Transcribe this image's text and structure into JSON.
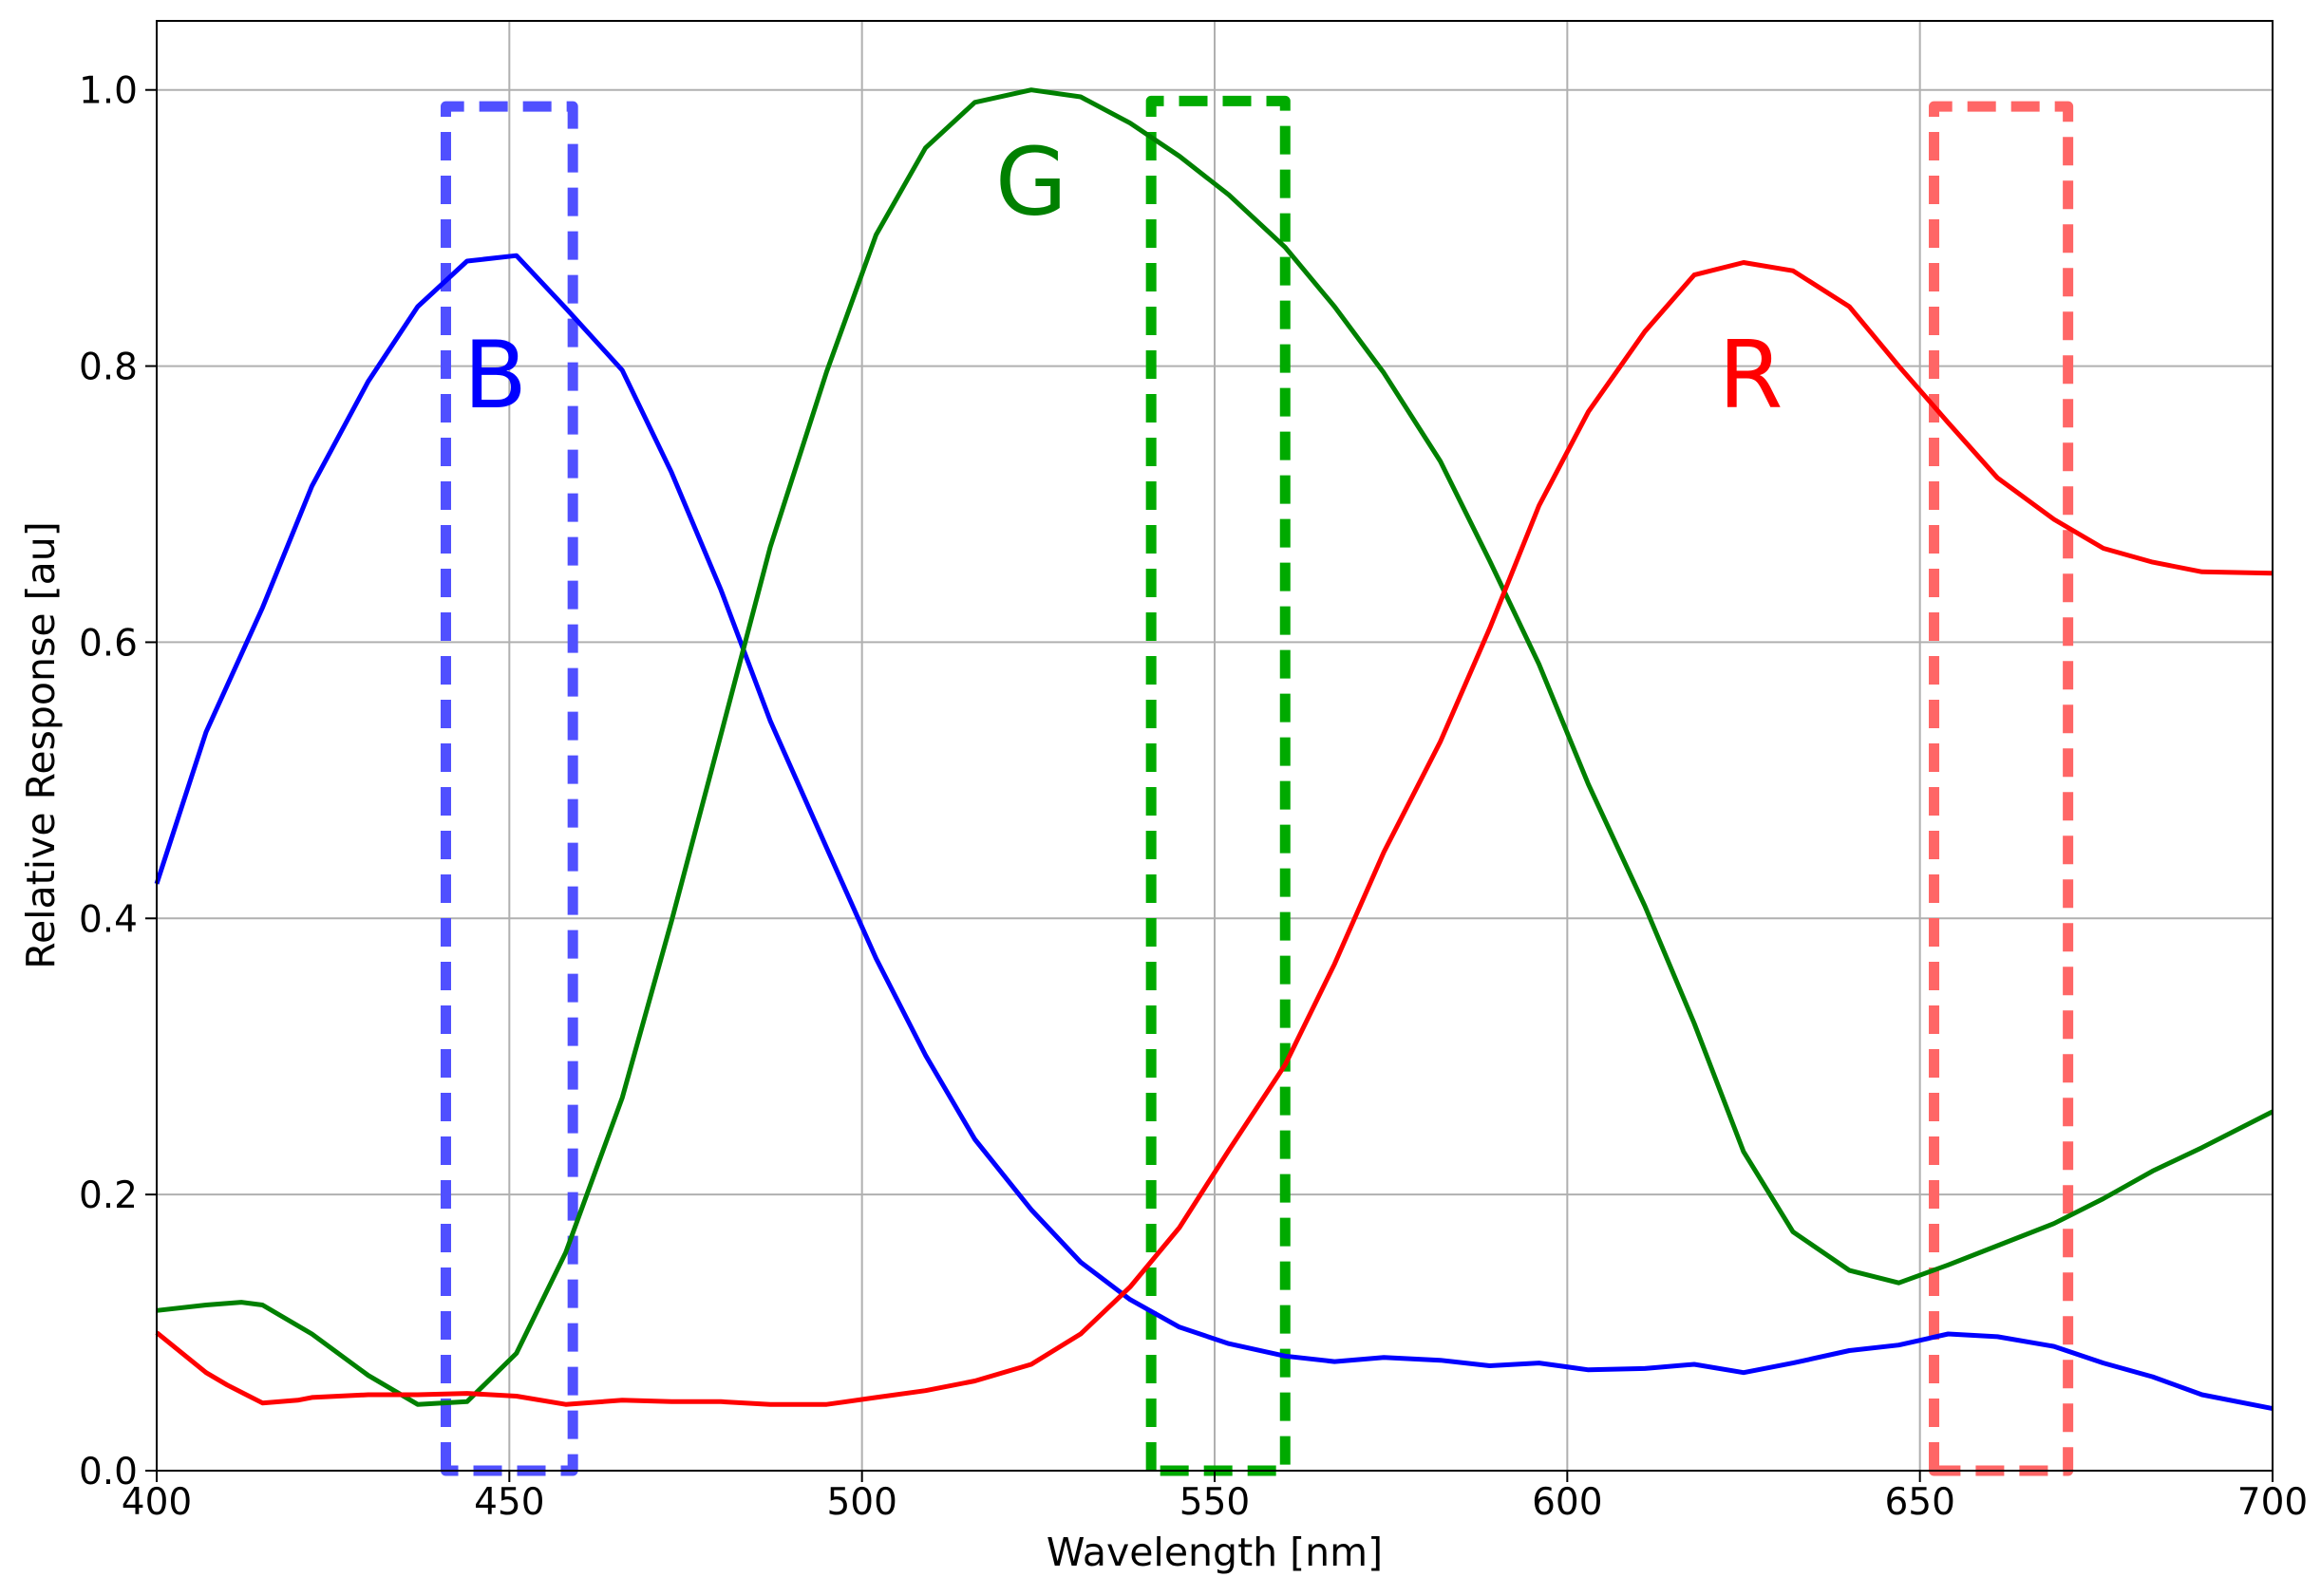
{
  "chart_data": {
    "type": "line",
    "title": "",
    "xlabel": "Wavelength [nm]",
    "ylabel": "Relative Response [au]",
    "xlim": [
      400,
      700
    ],
    "ylim": [
      0,
      1.05
    ],
    "grid": true,
    "x_ticks": [
      400,
      450,
      500,
      550,
      600,
      650,
      700
    ],
    "y_ticks": [
      0.0,
      0.2,
      0.4,
      0.6,
      0.8,
      1.0
    ],
    "x_tick_labels": [
      "400",
      "450",
      "500",
      "550",
      "600",
      "650",
      "700"
    ],
    "y_tick_labels": [
      "0.0",
      "0.2",
      "0.4",
      "0.6",
      "0.8",
      "1.0"
    ],
    "series": [
      {
        "name": "B",
        "color": "#0000ff",
        "points": [
          [
            400,
            0.425
          ],
          [
            407,
            0.535
          ],
          [
            415,
            0.625
          ],
          [
            422,
            0.713
          ],
          [
            430,
            0.789
          ],
          [
            437,
            0.843
          ],
          [
            444,
            0.876
          ],
          [
            451,
            0.88
          ],
          [
            458,
            0.842
          ],
          [
            466,
            0.797
          ],
          [
            473,
            0.723
          ],
          [
            480,
            0.638
          ],
          [
            487,
            0.543
          ],
          [
            495,
            0.451
          ],
          [
            502,
            0.371
          ],
          [
            509,
            0.301
          ],
          [
            516,
            0.24
          ],
          [
            524,
            0.189
          ],
          [
            531,
            0.151
          ],
          [
            538,
            0.124
          ],
          [
            545,
            0.104
          ],
          [
            552,
            0.092
          ],
          [
            560,
            0.083
          ],
          [
            567,
            0.079
          ],
          [
            574,
            0.082
          ],
          [
            582,
            0.08
          ],
          [
            589,
            0.076
          ],
          [
            596,
            0.078
          ],
          [
            603,
            0.073
          ],
          [
            611,
            0.074
          ],
          [
            618,
            0.077
          ],
          [
            625,
            0.071
          ],
          [
            632,
            0.078
          ],
          [
            640,
            0.087
          ],
          [
            647,
            0.091
          ],
          [
            654,
            0.099
          ],
          [
            661,
            0.097
          ],
          [
            669,
            0.09
          ],
          [
            676,
            0.078
          ],
          [
            683,
            0.068
          ],
          [
            690,
            0.055
          ],
          [
            700,
            0.045
          ]
        ]
      },
      {
        "name": "G",
        "color": "#008000",
        "points": [
          [
            400,
            0.116
          ],
          [
            407,
            0.12
          ],
          [
            412,
            0.122
          ],
          [
            415,
            0.12
          ],
          [
            422,
            0.099
          ],
          [
            430,
            0.069
          ],
          [
            437,
            0.048
          ],
          [
            444,
            0.05
          ],
          [
            451,
            0.085
          ],
          [
            458,
            0.158
          ],
          [
            466,
            0.27
          ],
          [
            473,
            0.398
          ],
          [
            480,
            0.533
          ],
          [
            487,
            0.669
          ],
          [
            495,
            0.796
          ],
          [
            502,
            0.895
          ],
          [
            509,
            0.958
          ],
          [
            516,
            0.991
          ],
          [
            524,
            1.0
          ],
          [
            531,
            0.995
          ],
          [
            538,
            0.976
          ],
          [
            545,
            0.952
          ],
          [
            552,
            0.924
          ],
          [
            560,
            0.886
          ],
          [
            567,
            0.843
          ],
          [
            574,
            0.795
          ],
          [
            582,
            0.731
          ],
          [
            589,
            0.659
          ],
          [
            596,
            0.584
          ],
          [
            603,
            0.497
          ],
          [
            611,
            0.409
          ],
          [
            618,
            0.324
          ],
          [
            625,
            0.231
          ],
          [
            632,
            0.173
          ],
          [
            640,
            0.145
          ],
          [
            647,
            0.136
          ],
          [
            654,
            0.149
          ],
          [
            661,
            0.163
          ],
          [
            669,
            0.179
          ],
          [
            676,
            0.197
          ],
          [
            683,
            0.217
          ],
          [
            690,
            0.234
          ],
          [
            700,
            0.26
          ]
        ]
      },
      {
        "name": "R",
        "color": "#ff0000",
        "points": [
          [
            400,
            0.1
          ],
          [
            407,
            0.071
          ],
          [
            410,
            0.062
          ],
          [
            415,
            0.049
          ],
          [
            420,
            0.051
          ],
          [
            422,
            0.053
          ],
          [
            430,
            0.055
          ],
          [
            437,
            0.055
          ],
          [
            444,
            0.056
          ],
          [
            451,
            0.054
          ],
          [
            458,
            0.048
          ],
          [
            466,
            0.051
          ],
          [
            473,
            0.05
          ],
          [
            480,
            0.05
          ],
          [
            487,
            0.048
          ],
          [
            495,
            0.048
          ],
          [
            502,
            0.053
          ],
          [
            509,
            0.058
          ],
          [
            516,
            0.065
          ],
          [
            524,
            0.077
          ],
          [
            531,
            0.099
          ],
          [
            538,
            0.133
          ],
          [
            545,
            0.176
          ],
          [
            552,
            0.232
          ],
          [
            560,
            0.294
          ],
          [
            567,
            0.367
          ],
          [
            574,
            0.448
          ],
          [
            582,
            0.528
          ],
          [
            589,
            0.61
          ],
          [
            596,
            0.699
          ],
          [
            603,
            0.767
          ],
          [
            611,
            0.825
          ],
          [
            618,
            0.866
          ],
          [
            625,
            0.875
          ],
          [
            632,
            0.869
          ],
          [
            640,
            0.843
          ],
          [
            647,
            0.8
          ],
          [
            654,
            0.759
          ],
          [
            661,
            0.719
          ],
          [
            669,
            0.689
          ],
          [
            676,
            0.668
          ],
          [
            683,
            0.658
          ],
          [
            690,
            0.651
          ],
          [
            700,
            0.65
          ]
        ]
      }
    ],
    "bands": [
      {
        "name": "B band",
        "color": "#5050ff",
        "x0": 441,
        "x1": 459,
        "top": 0.988
      },
      {
        "name": "G band",
        "color": "#00aa00",
        "x0": 541,
        "x1": 560,
        "top": 0.992
      },
      {
        "name": "R band",
        "color": "#ff6666",
        "x0": 652,
        "x1": 671,
        "top": 0.988
      }
    ],
    "annotations": [
      {
        "text": "B",
        "color": "#0000ff",
        "x": 448,
        "y": 0.77
      },
      {
        "text": "G",
        "color": "#008000",
        "x": 524,
        "y": 0.91
      },
      {
        "text": "R",
        "color": "#ff0000",
        "x": 626,
        "y": 0.77
      }
    ]
  }
}
